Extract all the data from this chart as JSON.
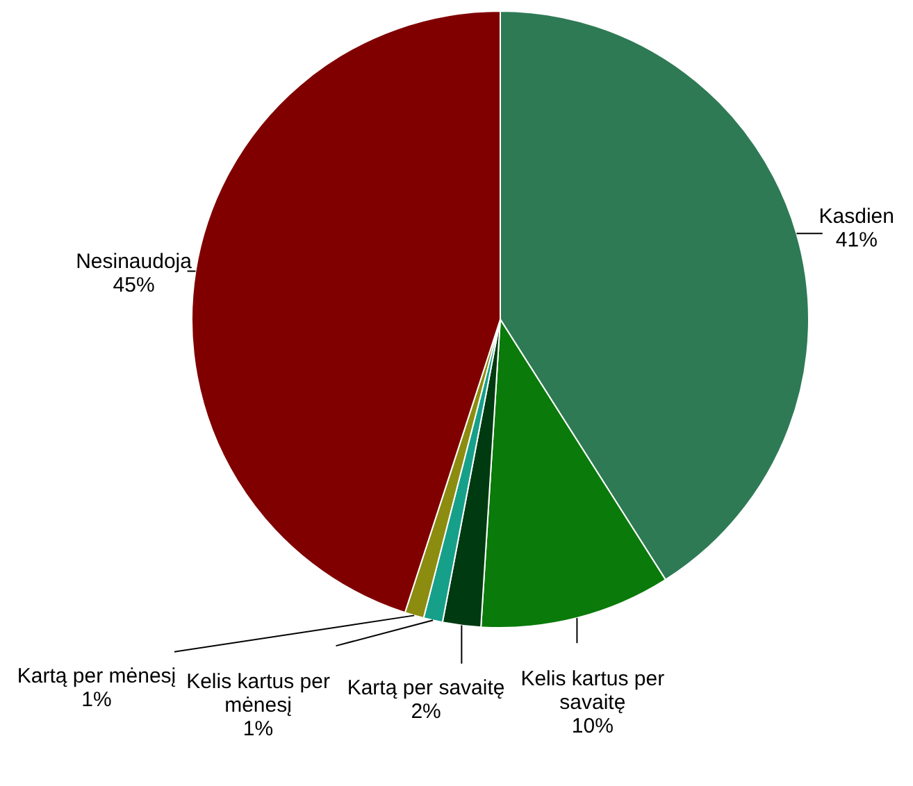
{
  "chart_data": {
    "type": "pie",
    "categories": [
      "Kasdien",
      "Kelis kartus per savaitę",
      "Kartą per savaitę",
      "Kelis kartus per mėnesį",
      "Kartą per mėnesį",
      "Nesinaudoja"
    ],
    "values": [
      41,
      10,
      2,
      1,
      1,
      45
    ],
    "value_labels": [
      "41%",
      "10%",
      "2%",
      "1%",
      "1%",
      "45%"
    ],
    "colors": [
      "#2e7a55",
      "#0a7a0a",
      "#003a10",
      "#16a08a",
      "#8c8c10",
      "#800000"
    ]
  }
}
